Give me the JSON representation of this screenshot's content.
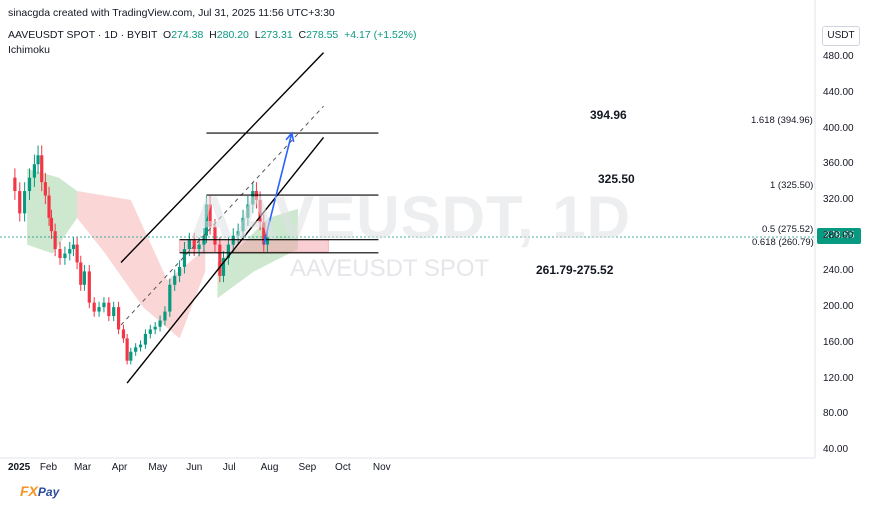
{
  "header": {
    "credit": "sinacgda created with TradingView.com, Jul 31, 2025 11:56 UTC+3:30",
    "symbol": "AAVEUSDT SPOT · 1D · BYBIT",
    "o_label": "O",
    "o_value": "274.38",
    "h_label": "H",
    "h_value": "280.20",
    "l_label": "L",
    "l_value": "273.31",
    "c_label": "C",
    "c_value": "278.55",
    "change": "+4.17 (+1.52%)",
    "indicator": "Ichimoku",
    "currency": "USDT"
  },
  "watermark": {
    "big": "AAVEUSDT, 1D",
    "small": "AAVEUSDT SPOT"
  },
  "annotations": {
    "target_value": "394.96",
    "level_value": "325.50",
    "zone_value": "261.79-275.52",
    "fib_1618": "1.618 (394.96)",
    "fib_1": "1 (325.50)",
    "fib_05": "0.5 (275.52)",
    "fib_0618": "0.618 (260.79)"
  },
  "logo": {
    "fx": "FX",
    "pay": "Pay"
  },
  "colors": {
    "up": "#089981",
    "down": "#f23645",
    "cloud_green": "#a5d6a7",
    "cloud_red": "#f8bbbb",
    "zone": "#f5a0a8",
    "arrow": "#2962ff"
  },
  "chart_data": {
    "type": "line",
    "title": "",
    "xlabel": "",
    "ylabel": "",
    "last_price": "278.55",
    "ylim": [
      30,
      490
    ],
    "y_ticks": [
      "480.00",
      "440.00",
      "400.00",
      "360.00",
      "320.00",
      "280.00",
      "240.00",
      "200.00",
      "160.00",
      "120.00",
      "80.00",
      "40.00"
    ],
    "x_ticks": [
      "2025",
      "Feb",
      "Mar",
      "Apr",
      "May",
      "Jun",
      "Jul",
      "Aug",
      "Sep",
      "Oct",
      "Nov"
    ],
    "channel": {
      "upper": [
        [
          "2025-04-02",
          250
        ],
        [
          "2025-09-15",
          485
        ]
      ],
      "middle": [
        [
          "2025-04-02",
          180
        ],
        [
          "2025-09-15",
          425
        ]
      ],
      "lower": [
        [
          "2025-04-07",
          115
        ],
        [
          "2025-09-15",
          390
        ]
      ]
    },
    "fib_levels": [
      {
        "label": "1.618",
        "value": 394.96
      },
      {
        "label": "1",
        "value": 325.5
      },
      {
        "label": "0.5",
        "value": 275.52
      },
      {
        "label": "0.618",
        "value": 260.79
      }
    ],
    "zone": [
      261.79,
      275.52
    ],
    "projection": {
      "from": [
        "2025-07-28",
        270
      ],
      "to": [
        "2025-08-20",
        395
      ]
    },
    "series": [
      {
        "values": [
          [
            "2025-01-01",
            345
          ],
          [
            "2025-01-05",
            330
          ],
          [
            "2025-01-09",
            305
          ],
          [
            "2025-01-13",
            330
          ],
          [
            "2025-01-17",
            345
          ],
          [
            "2025-01-21",
            360
          ],
          [
            "2025-01-24",
            370
          ],
          [
            "2025-01-27",
            340
          ],
          [
            "2025-01-30",
            325
          ],
          [
            "2025-02-02",
            300
          ],
          [
            "2025-02-04",
            285
          ],
          [
            "2025-02-07",
            265
          ],
          [
            "2025-02-11",
            255
          ],
          [
            "2025-02-15",
            260
          ],
          [
            "2025-02-19",
            265
          ],
          [
            "2025-02-22",
            270
          ],
          [
            "2025-02-25",
            250
          ],
          [
            "2025-02-28",
            225
          ],
          [
            "2025-03-03",
            240
          ],
          [
            "2025-03-07",
            205
          ],
          [
            "2025-03-11",
            195
          ],
          [
            "2025-03-15",
            200
          ],
          [
            "2025-03-19",
            205
          ],
          [
            "2025-03-23",
            190
          ],
          [
            "2025-03-27",
            200
          ],
          [
            "2025-03-31",
            175
          ],
          [
            "2025-04-04",
            165
          ],
          [
            "2025-04-07",
            140
          ],
          [
            "2025-04-10",
            150
          ],
          [
            "2025-04-14",
            155
          ],
          [
            "2025-04-18",
            158
          ],
          [
            "2025-04-22",
            170
          ],
          [
            "2025-04-26",
            175
          ],
          [
            "2025-04-30",
            178
          ],
          [
            "2025-05-04",
            185
          ],
          [
            "2025-05-08",
            195
          ],
          [
            "2025-05-12",
            225
          ],
          [
            "2025-05-16",
            235
          ],
          [
            "2025-05-20",
            245
          ],
          [
            "2025-05-24",
            265
          ],
          [
            "2025-05-28",
            275
          ],
          [
            "2025-06-01",
            265
          ],
          [
            "2025-06-05",
            270
          ],
          [
            "2025-06-09",
            280
          ],
          [
            "2025-06-11",
            315
          ],
          [
            "2025-06-14",
            290
          ],
          [
            "2025-06-18",
            270
          ],
          [
            "2025-06-22",
            235
          ],
          [
            "2025-06-25",
            255
          ],
          [
            "2025-06-29",
            270
          ],
          [
            "2025-07-03",
            280
          ],
          [
            "2025-07-07",
            285
          ],
          [
            "2025-07-11",
            300
          ],
          [
            "2025-07-15",
            315
          ],
          [
            "2025-07-19",
            330
          ],
          [
            "2025-07-22",
            320
          ],
          [
            "2025-07-25",
            295
          ],
          [
            "2025-07-28",
            270
          ],
          [
            "2025-07-31",
            278.55
          ]
        ]
      }
    ]
  }
}
